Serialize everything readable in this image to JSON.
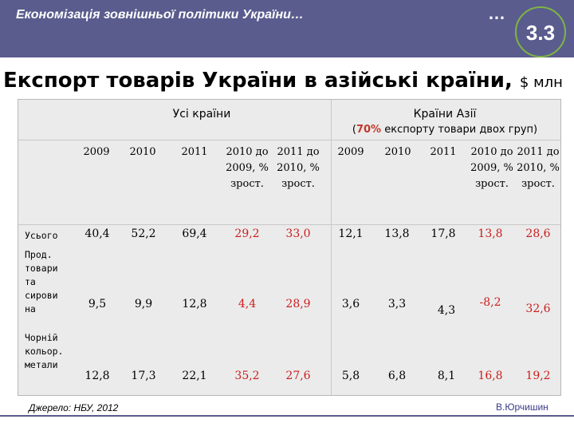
{
  "header": {
    "title": "Економізація зовнішньої політики України…",
    "dots": "…",
    "slide_number": "3.3"
  },
  "slide": {
    "title": "Експорт товарів України в азійські країни,",
    "unit": "$ млн"
  },
  "table": {
    "group_all": "Усі країни",
    "group_asia": "Країни Азії",
    "group_asia_note_open": "(",
    "group_asia_note_bold": "70%",
    "group_asia_note_rest": " експорту товари двох груп)",
    "columns": [
      "2009",
      "2010",
      "2011",
      "2010 до 2009, % зрост.",
      "2011 до 2010, % зрост.",
      "2009",
      "2010",
      "2011",
      "2010 до 2009, % зрост.",
      "2011 до 2010, % зрост."
    ],
    "rows": [
      {
        "label": "Усього",
        "values": [
          "40,4",
          "52,2",
          "69,4",
          "29,2",
          "33,0",
          "12,1",
          "13,8",
          "17,8",
          "13,8",
          "28,6"
        ]
      },
      {
        "label": "Прод. товари та сирови на",
        "values": [
          "9,5",
          "9,9",
          "12,8",
          "4,4",
          "28,9",
          "3,6",
          "3,3",
          "4,3",
          "-8,2",
          "32,6"
        ]
      },
      {
        "label": "Чорній кольор. метали",
        "values": [
          "12,8",
          "17,3",
          "22,1",
          "35,2",
          "27,6",
          "5,8",
          "6,8",
          "8,1",
          "16,8",
          "19,2"
        ]
      }
    ]
  },
  "footer": {
    "source": "Джерело: НБУ, 2012",
    "author": "В.Юрчишин"
  },
  "colors": {
    "header_bg": "#5a5c8e",
    "badge_ring": "#7fb542",
    "growth_value": "#cc1c1c",
    "table_bg": "#ebebeb"
  }
}
